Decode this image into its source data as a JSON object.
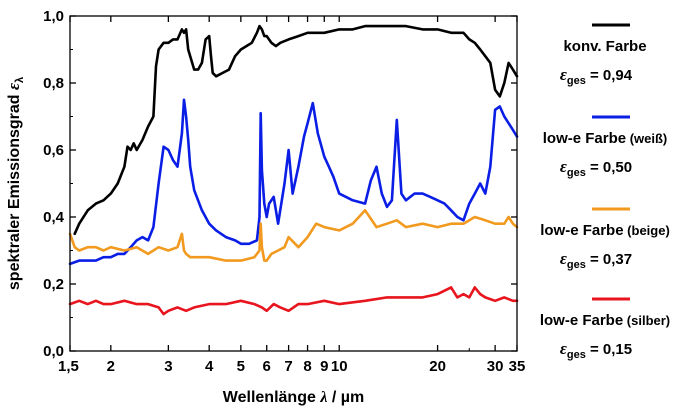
{
  "chart_data": {
    "type": "line",
    "title": "",
    "xlabel": {
      "text": "Wellenlänge ",
      "symbol": "λ",
      "unit": " / µm"
    },
    "ylabel": {
      "text": "spektraler Emissionsgrad ",
      "symbol": "ε",
      "subscript": "λ"
    },
    "xscale": "log",
    "xlim": [
      1.5,
      35
    ],
    "ylim": [
      0,
      1.0
    ],
    "xticks": [
      {
        "value": 1.5,
        "label": "1,5"
      },
      {
        "value": 2,
        "label": "2"
      },
      {
        "value": 3,
        "label": "3"
      },
      {
        "value": 4,
        "label": "4"
      },
      {
        "value": 5,
        "label": "5"
      },
      {
        "value": 6,
        "label": "6"
      },
      {
        "value": 7,
        "label": "7"
      },
      {
        "value": 8,
        "label": "8"
      },
      {
        "value": 9,
        "label": "9"
      },
      {
        "value": 10,
        "label": "10"
      },
      {
        "value": 20,
        "label": "20"
      },
      {
        "value": 30,
        "label": "30"
      },
      {
        "value": 35,
        "label": "35"
      }
    ],
    "yticks": [
      {
        "value": 0.0,
        "label": "0,0"
      },
      {
        "value": 0.2,
        "label": "0,2"
      },
      {
        "value": 0.4,
        "label": "0,4"
      },
      {
        "value": 0.6,
        "label": "0,6"
      },
      {
        "value": 0.8,
        "label": "0,8"
      },
      {
        "value": 1.0,
        "label": "1,0"
      }
    ],
    "grid": false,
    "legend_position": "right",
    "series": [
      {
        "name": "konv. Farbe",
        "name_suffix": "",
        "eps_label": "ε",
        "eps_sub": "ges",
        "eps_value": " = 0,94",
        "color": "#000000",
        "x": [
          1.55,
          1.6,
          1.7,
          1.8,
          1.9,
          2.0,
          2.1,
          2.2,
          2.25,
          2.3,
          2.35,
          2.4,
          2.5,
          2.6,
          2.7,
          2.75,
          2.8,
          2.9,
          3.0,
          3.1,
          3.2,
          3.3,
          3.35,
          3.4,
          3.45,
          3.5,
          3.6,
          3.7,
          3.8,
          3.9,
          4.0,
          4.05,
          4.1,
          4.2,
          4.4,
          4.6,
          4.8,
          5.0,
          5.2,
          5.4,
          5.6,
          5.7,
          5.8,
          5.9,
          6.0,
          6.2,
          6.4,
          6.6,
          7.0,
          7.5,
          8.0,
          8.5,
          9.0,
          10,
          11,
          12,
          13,
          14,
          15,
          16,
          18,
          20,
          22,
          24,
          25,
          26,
          27,
          28,
          29,
          30,
          31,
          32,
          33,
          34,
          35
        ],
        "y": [
          0.35,
          0.38,
          0.42,
          0.44,
          0.45,
          0.47,
          0.5,
          0.55,
          0.61,
          0.6,
          0.62,
          0.6,
          0.63,
          0.67,
          0.7,
          0.85,
          0.9,
          0.92,
          0.92,
          0.93,
          0.93,
          0.96,
          0.95,
          0.96,
          0.9,
          0.88,
          0.84,
          0.84,
          0.86,
          0.93,
          0.94,
          0.88,
          0.83,
          0.82,
          0.83,
          0.84,
          0.88,
          0.9,
          0.91,
          0.92,
          0.95,
          0.97,
          0.96,
          0.94,
          0.94,
          0.92,
          0.91,
          0.92,
          0.93,
          0.94,
          0.95,
          0.95,
          0.95,
          0.96,
          0.96,
          0.97,
          0.97,
          0.97,
          0.97,
          0.97,
          0.96,
          0.96,
          0.95,
          0.95,
          0.93,
          0.92,
          0.9,
          0.88,
          0.86,
          0.78,
          0.76,
          0.8,
          0.86,
          0.84,
          0.82
        ]
      },
      {
        "name": "low-e Farbe",
        "name_suffix": "(weiß)",
        "eps_label": "ε",
        "eps_sub": "ges",
        "eps_value": " = 0,50",
        "color": "#0a1ee6",
        "x": [
          1.5,
          1.6,
          1.7,
          1.8,
          1.9,
          2.0,
          2.1,
          2.2,
          2.3,
          2.4,
          2.5,
          2.6,
          2.7,
          2.8,
          2.9,
          3.0,
          3.1,
          3.2,
          3.3,
          3.35,
          3.4,
          3.45,
          3.5,
          3.6,
          3.8,
          4.0,
          4.2,
          4.5,
          4.8,
          5.0,
          5.3,
          5.6,
          5.7,
          5.75,
          5.8,
          5.9,
          6.0,
          6.1,
          6.3,
          6.5,
          6.8,
          7.0,
          7.2,
          7.5,
          7.8,
          8.0,
          8.3,
          8.6,
          9.0,
          9.3,
          9.6,
          10,
          11,
          12,
          12.5,
          13,
          13.5,
          14,
          14.5,
          15,
          15.5,
          16,
          17,
          18,
          19,
          20,
          21,
          22,
          23,
          24,
          25,
          26,
          27,
          28,
          29,
          30,
          31,
          32,
          33,
          34,
          35
        ],
        "y": [
          0.26,
          0.27,
          0.27,
          0.27,
          0.28,
          0.28,
          0.29,
          0.29,
          0.31,
          0.33,
          0.34,
          0.33,
          0.37,
          0.5,
          0.61,
          0.6,
          0.57,
          0.55,
          0.65,
          0.75,
          0.7,
          0.63,
          0.55,
          0.48,
          0.42,
          0.38,
          0.36,
          0.34,
          0.33,
          0.32,
          0.32,
          0.33,
          0.4,
          0.71,
          0.54,
          0.44,
          0.4,
          0.44,
          0.46,
          0.38,
          0.5,
          0.6,
          0.47,
          0.55,
          0.64,
          0.68,
          0.74,
          0.65,
          0.58,
          0.55,
          0.52,
          0.47,
          0.45,
          0.44,
          0.51,
          0.55,
          0.47,
          0.43,
          0.45,
          0.69,
          0.47,
          0.45,
          0.47,
          0.47,
          0.46,
          0.45,
          0.44,
          0.42,
          0.4,
          0.39,
          0.44,
          0.47,
          0.5,
          0.47,
          0.55,
          0.72,
          0.73,
          0.7,
          0.68,
          0.66,
          0.64
        ]
      },
      {
        "name": "low-e Farbe",
        "name_suffix": "(beige)",
        "eps_label": "ε",
        "eps_sub": "ges",
        "eps_value": " = 0,37",
        "color": "#f29a1f",
        "x": [
          1.5,
          1.55,
          1.6,
          1.7,
          1.8,
          1.9,
          2.0,
          2.2,
          2.4,
          2.6,
          2.8,
          3.0,
          3.2,
          3.3,
          3.35,
          3.4,
          3.5,
          3.7,
          4.0,
          4.5,
          5.0,
          5.5,
          5.7,
          5.75,
          5.8,
          5.9,
          6.0,
          6.2,
          6.5,
          6.8,
          7.0,
          7.5,
          8.0,
          8.5,
          9.0,
          10,
          11,
          12,
          13,
          14,
          15,
          16,
          18,
          20,
          22,
          24,
          26,
          28,
          30,
          32,
          33,
          34,
          35
        ],
        "y": [
          0.35,
          0.31,
          0.3,
          0.31,
          0.31,
          0.3,
          0.31,
          0.3,
          0.31,
          0.29,
          0.31,
          0.3,
          0.31,
          0.35,
          0.3,
          0.29,
          0.28,
          0.28,
          0.28,
          0.27,
          0.27,
          0.28,
          0.3,
          0.38,
          0.31,
          0.27,
          0.27,
          0.29,
          0.3,
          0.31,
          0.34,
          0.31,
          0.34,
          0.38,
          0.37,
          0.36,
          0.38,
          0.42,
          0.37,
          0.38,
          0.39,
          0.37,
          0.38,
          0.37,
          0.38,
          0.38,
          0.4,
          0.39,
          0.38,
          0.38,
          0.4,
          0.38,
          0.37
        ]
      },
      {
        "name": "low-e Farbe",
        "name_suffix": "(silber)",
        "eps_label": "ε",
        "eps_sub": "ges",
        "eps_value": " = 0,15",
        "color": "#e8141e",
        "x": [
          1.5,
          1.6,
          1.7,
          1.8,
          1.9,
          2.0,
          2.2,
          2.4,
          2.6,
          2.8,
          2.9,
          3.0,
          3.2,
          3.4,
          3.6,
          4.0,
          4.5,
          5.0,
          5.5,
          5.8,
          6.0,
          6.3,
          6.6,
          7.0,
          7.5,
          8.0,
          9.0,
          10,
          12,
          14,
          16,
          18,
          20,
          21,
          22,
          23,
          24,
          25,
          26,
          27,
          28,
          30,
          32,
          34,
          35
        ],
        "y": [
          0.14,
          0.15,
          0.14,
          0.15,
          0.14,
          0.14,
          0.15,
          0.14,
          0.14,
          0.13,
          0.11,
          0.12,
          0.13,
          0.12,
          0.13,
          0.14,
          0.14,
          0.15,
          0.14,
          0.13,
          0.12,
          0.14,
          0.13,
          0.12,
          0.14,
          0.14,
          0.15,
          0.14,
          0.15,
          0.16,
          0.16,
          0.16,
          0.17,
          0.18,
          0.19,
          0.16,
          0.17,
          0.16,
          0.19,
          0.17,
          0.16,
          0.15,
          0.16,
          0.15,
          0.15
        ]
      }
    ]
  }
}
